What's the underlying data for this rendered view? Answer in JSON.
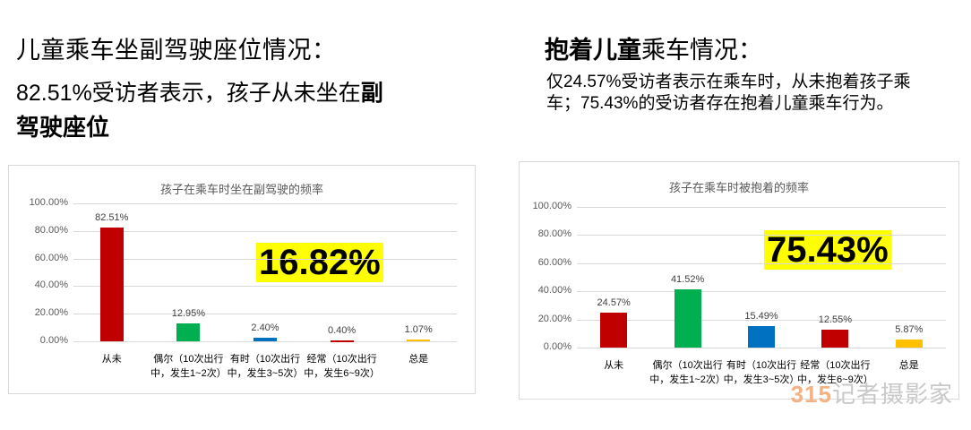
{
  "left_text": {
    "title": "儿童乘车坐副驾驶座位情况：",
    "line2": "82.51%受访者表示，孩子从未坐在",
    "line2_bold": "副",
    "line3": "驾驶座位"
  },
  "right_text": {
    "title_bold": "抱着儿童",
    "title_rest": "乘车情况：",
    "body": "仅24.57%受访者表示在乘车时，从未抱着孩子乘车；75.43%的受访者存在抱着儿童乘车行为。"
  },
  "watermark": {
    "num": "315",
    "text": "记者摄影家"
  },
  "chart_data": [
    {
      "type": "bar",
      "title": "孩子在乘车时坐在副驾驶的频率",
      "categories": [
        "从未",
        "偶尔（10次出行中，发生1~2次）",
        "有时（10次出行中，发生3~5次）",
        "经常（10次出行中，发生6~9次）",
        "总是"
      ],
      "category_lines": [
        [
          "从未"
        ],
        [
          "偶尔（10次出行",
          "中，发生1~2次）"
        ],
        [
          "有时（10次出行",
          "中，发生3~5次）"
        ],
        [
          "经常（10次出行",
          "中，发生6~9次）"
        ],
        [
          "总是"
        ]
      ],
      "values": [
        82.51,
        12.95,
        2.4,
        0.4,
        1.07
      ],
      "value_labels": [
        "82.51%",
        "12.95%",
        "2.40%",
        "0.40%",
        "1.07%"
      ],
      "colors": [
        "#c00000",
        "#00b050",
        "#0070c0",
        "#c00000",
        "#ffc000"
      ],
      "yticks": [
        "0.00%",
        "20.00%",
        "40.00%",
        "60.00%",
        "80.00%",
        "100.00%"
      ],
      "ylim": [
        0,
        100
      ],
      "grid": true,
      "highlight": "16.82%"
    },
    {
      "type": "bar",
      "title": "孩子在乘车时被抱着的频率",
      "categories": [
        "从未",
        "偶尔（10次出行中，发生1~2次）",
        "有时（10次出行中，发生3~5次）",
        "经常（10次出行中，发生6~9次）",
        "总是"
      ],
      "category_lines": [
        [
          "从未"
        ],
        [
          "偶尔（10次出行",
          "中，发生1~2次）"
        ],
        [
          "有时（10次出行",
          "中，发生3~5次）"
        ],
        [
          "经常（10次出行",
          "中，发生6~9次）"
        ],
        [
          "总是"
        ]
      ],
      "values": [
        24.57,
        41.52,
        15.49,
        12.55,
        5.87
      ],
      "value_labels": [
        "24.57%",
        "41.52%",
        "15.49%",
        "12.55%",
        "5.87%"
      ],
      "colors": [
        "#c00000",
        "#00b050",
        "#0070c0",
        "#c00000",
        "#ffc000"
      ],
      "yticks": [
        "0.00%",
        "20.00%",
        "40.00%",
        "60.00%",
        "80.00%",
        "100.00%"
      ],
      "ylim": [
        0,
        100
      ],
      "grid": true,
      "highlight": "75.43%"
    }
  ]
}
